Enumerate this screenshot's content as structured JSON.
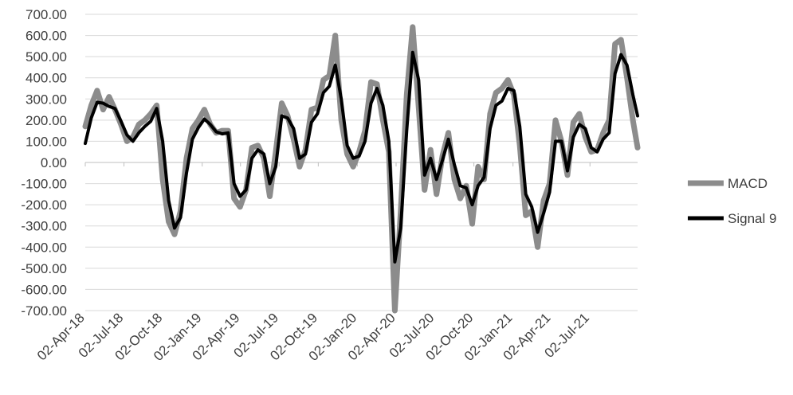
{
  "chart_data": {
    "type": "line",
    "title": "",
    "xlabel": "",
    "ylabel": "",
    "ylim": [
      -700,
      700
    ],
    "y_ticks": [
      "700.00",
      "600.00",
      "500.00",
      "400.00",
      "300.00",
      "200.00",
      "100.00",
      "0.00",
      "-100.00",
      "-200.00",
      "-300.00",
      "-400.00",
      "-500.00",
      "-600.00",
      "-700.00"
    ],
    "x_range": [
      "2018-04-02",
      "2021-10-22"
    ],
    "x_ticks": [
      {
        "date": "2018-04-02",
        "label": "02-Apr-18"
      },
      {
        "date": "2018-07-02",
        "label": "02-Jul-18"
      },
      {
        "date": "2018-10-02",
        "label": "02-Oct-18"
      },
      {
        "date": "2019-01-02",
        "label": "02-Jan-19"
      },
      {
        "date": "2019-04-02",
        "label": "02-Apr-19"
      },
      {
        "date": "2019-07-02",
        "label": "02-Jul-19"
      },
      {
        "date": "2019-10-02",
        "label": "02-Oct-19"
      },
      {
        "date": "2020-01-02",
        "label": "02-Jan-20"
      },
      {
        "date": "2020-04-02",
        "label": "02-Apr-20"
      },
      {
        "date": "2020-07-02",
        "label": "02-Jul-20"
      },
      {
        "date": "2020-10-02",
        "label": "02-Oct-20"
      },
      {
        "date": "2021-01-02",
        "label": "02-Jan-21"
      },
      {
        "date": "2021-04-02",
        "label": "02-Apr-21"
      },
      {
        "date": "2021-07-02",
        "label": "02-Jul-21"
      }
    ],
    "grid": "horizontal",
    "legend_position": "right",
    "series": [
      {
        "name": "MACD",
        "color": "#8c8c8c",
        "points": [
          [
            "2018-04-02",
            170
          ],
          [
            "2018-04-16",
            270
          ],
          [
            "2018-04-30",
            340
          ],
          [
            "2018-05-14",
            250
          ],
          [
            "2018-05-28",
            310
          ],
          [
            "2018-06-11",
            250
          ],
          [
            "2018-06-25",
            180
          ],
          [
            "2018-07-09",
            100
          ],
          [
            "2018-07-23",
            120
          ],
          [
            "2018-08-06",
            180
          ],
          [
            "2018-08-20",
            200
          ],
          [
            "2018-09-03",
            230
          ],
          [
            "2018-09-17",
            270
          ],
          [
            "2018-10-01",
            -80
          ],
          [
            "2018-10-15",
            -280
          ],
          [
            "2018-10-29",
            -340
          ],
          [
            "2018-11-12",
            -230
          ],
          [
            "2018-11-26",
            20
          ],
          [
            "2018-12-10",
            160
          ],
          [
            "2018-12-24",
            200
          ],
          [
            "2019-01-07",
            250
          ],
          [
            "2019-01-21",
            180
          ],
          [
            "2019-02-04",
            140
          ],
          [
            "2019-02-18",
            150
          ],
          [
            "2019-03-04",
            150
          ],
          [
            "2019-03-18",
            -170
          ],
          [
            "2019-04-01",
            -210
          ],
          [
            "2019-04-15",
            -130
          ],
          [
            "2019-04-29",
            70
          ],
          [
            "2019-05-13",
            80
          ],
          [
            "2019-05-27",
            20
          ],
          [
            "2019-06-10",
            -160
          ],
          [
            "2019-06-24",
            50
          ],
          [
            "2019-07-08",
            280
          ],
          [
            "2019-07-22",
            220
          ],
          [
            "2019-08-05",
            110
          ],
          [
            "2019-08-19",
            -20
          ],
          [
            "2019-09-02",
            60
          ],
          [
            "2019-09-16",
            250
          ],
          [
            "2019-09-30",
            260
          ],
          [
            "2019-10-14",
            390
          ],
          [
            "2019-10-28",
            410
          ],
          [
            "2019-11-11",
            600
          ],
          [
            "2019-11-25",
            200
          ],
          [
            "2019-12-09",
            40
          ],
          [
            "2019-12-23",
            -20
          ],
          [
            "2020-01-06",
            50
          ],
          [
            "2020-01-20",
            150
          ],
          [
            "2020-02-03",
            380
          ],
          [
            "2020-02-17",
            370
          ],
          [
            "2020-03-02",
            200
          ],
          [
            "2020-03-16",
            50
          ],
          [
            "2020-03-30",
            -700
          ],
          [
            "2020-04-13",
            -230
          ],
          [
            "2020-04-27",
            320
          ],
          [
            "2020-05-11",
            640
          ],
          [
            "2020-05-25",
            260
          ],
          [
            "2020-06-08",
            -130
          ],
          [
            "2020-06-22",
            60
          ],
          [
            "2020-07-06",
            -150
          ],
          [
            "2020-07-20",
            30
          ],
          [
            "2020-08-03",
            140
          ],
          [
            "2020-08-17",
            -80
          ],
          [
            "2020-08-31",
            -170
          ],
          [
            "2020-09-14",
            -110
          ],
          [
            "2020-09-28",
            -290
          ],
          [
            "2020-10-12",
            -20
          ],
          [
            "2020-10-26",
            -80
          ],
          [
            "2020-11-09",
            230
          ],
          [
            "2020-11-23",
            330
          ],
          [
            "2020-12-07",
            350
          ],
          [
            "2020-12-21",
            390
          ],
          [
            "2021-01-04",
            320
          ],
          [
            "2021-01-18",
            80
          ],
          [
            "2021-02-01",
            -250
          ],
          [
            "2021-02-15",
            -230
          ],
          [
            "2021-03-01",
            -400
          ],
          [
            "2021-03-15",
            -180
          ],
          [
            "2021-03-29",
            -100
          ],
          [
            "2021-04-12",
            200
          ],
          [
            "2021-04-26",
            100
          ],
          [
            "2021-05-10",
            -60
          ],
          [
            "2021-05-24",
            190
          ],
          [
            "2021-06-07",
            230
          ],
          [
            "2021-06-21",
            120
          ],
          [
            "2021-07-05",
            50
          ],
          [
            "2021-07-19",
            60
          ],
          [
            "2021-08-02",
            140
          ],
          [
            "2021-08-16",
            200
          ],
          [
            "2021-08-30",
            560
          ],
          [
            "2021-09-13",
            580
          ],
          [
            "2021-09-27",
            400
          ],
          [
            "2021-10-11",
            200
          ],
          [
            "2021-10-22",
            70
          ]
        ]
      },
      {
        "name": "Signal 9",
        "color": "#000000",
        "points": [
          [
            "2018-04-02",
            90
          ],
          [
            "2018-04-16",
            210
          ],
          [
            "2018-04-30",
            285
          ],
          [
            "2018-05-14",
            280
          ],
          [
            "2018-05-28",
            265
          ],
          [
            "2018-06-11",
            255
          ],
          [
            "2018-06-25",
            195
          ],
          [
            "2018-07-09",
            130
          ],
          [
            "2018-07-23",
            100
          ],
          [
            "2018-08-06",
            140
          ],
          [
            "2018-08-20",
            170
          ],
          [
            "2018-09-03",
            195
          ],
          [
            "2018-09-17",
            255
          ],
          [
            "2018-10-01",
            100
          ],
          [
            "2018-10-15",
            -180
          ],
          [
            "2018-10-29",
            -310
          ],
          [
            "2018-11-12",
            -260
          ],
          [
            "2018-11-26",
            -50
          ],
          [
            "2018-12-10",
            110
          ],
          [
            "2018-12-24",
            165
          ],
          [
            "2019-01-07",
            205
          ],
          [
            "2019-01-21",
            180
          ],
          [
            "2019-02-04",
            145
          ],
          [
            "2019-02-18",
            135
          ],
          [
            "2019-03-04",
            140
          ],
          [
            "2019-03-18",
            -100
          ],
          [
            "2019-04-01",
            -160
          ],
          [
            "2019-04-15",
            -130
          ],
          [
            "2019-04-29",
            20
          ],
          [
            "2019-05-13",
            60
          ],
          [
            "2019-05-27",
            40
          ],
          [
            "2019-06-10",
            -100
          ],
          [
            "2019-06-24",
            -20
          ],
          [
            "2019-07-08",
            220
          ],
          [
            "2019-07-22",
            210
          ],
          [
            "2019-08-05",
            160
          ],
          [
            "2019-08-19",
            20
          ],
          [
            "2019-09-02",
            40
          ],
          [
            "2019-09-16",
            190
          ],
          [
            "2019-09-30",
            230
          ],
          [
            "2019-10-14",
            330
          ],
          [
            "2019-10-28",
            360
          ],
          [
            "2019-11-11",
            460
          ],
          [
            "2019-11-25",
            300
          ],
          [
            "2019-12-09",
            80
          ],
          [
            "2019-12-23",
            20
          ],
          [
            "2020-01-06",
            30
          ],
          [
            "2020-01-20",
            100
          ],
          [
            "2020-02-03",
            280
          ],
          [
            "2020-02-17",
            350
          ],
          [
            "2020-03-02",
            270
          ],
          [
            "2020-03-16",
            100
          ],
          [
            "2020-03-30",
            -470
          ],
          [
            "2020-04-13",
            -310
          ],
          [
            "2020-04-27",
            150
          ],
          [
            "2020-05-11",
            520
          ],
          [
            "2020-05-25",
            390
          ],
          [
            "2020-06-08",
            -60
          ],
          [
            "2020-06-22",
            20
          ],
          [
            "2020-07-06",
            -80
          ],
          [
            "2020-07-20",
            10
          ],
          [
            "2020-08-03",
            110
          ],
          [
            "2020-08-17",
            -10
          ],
          [
            "2020-08-31",
            -110
          ],
          [
            "2020-09-14",
            -120
          ],
          [
            "2020-09-28",
            -200
          ],
          [
            "2020-10-12",
            -110
          ],
          [
            "2020-10-26",
            -70
          ],
          [
            "2020-11-09",
            160
          ],
          [
            "2020-11-23",
            270
          ],
          [
            "2020-12-07",
            290
          ],
          [
            "2020-12-21",
            350
          ],
          [
            "2021-01-04",
            340
          ],
          [
            "2021-01-18",
            170
          ],
          [
            "2021-02-01",
            -150
          ],
          [
            "2021-02-15",
            -210
          ],
          [
            "2021-03-01",
            -330
          ],
          [
            "2021-03-15",
            -240
          ],
          [
            "2021-03-29",
            -140
          ],
          [
            "2021-04-12",
            100
          ],
          [
            "2021-04-26",
            100
          ],
          [
            "2021-05-10",
            -40
          ],
          [
            "2021-05-24",
            120
          ],
          [
            "2021-06-07",
            180
          ],
          [
            "2021-06-21",
            160
          ],
          [
            "2021-07-05",
            70
          ],
          [
            "2021-07-19",
            50
          ],
          [
            "2021-08-02",
            110
          ],
          [
            "2021-08-16",
            140
          ],
          [
            "2021-08-30",
            420
          ],
          [
            "2021-09-13",
            510
          ],
          [
            "2021-09-27",
            460
          ],
          [
            "2021-10-11",
            320
          ],
          [
            "2021-10-22",
            220
          ]
        ]
      }
    ]
  }
}
